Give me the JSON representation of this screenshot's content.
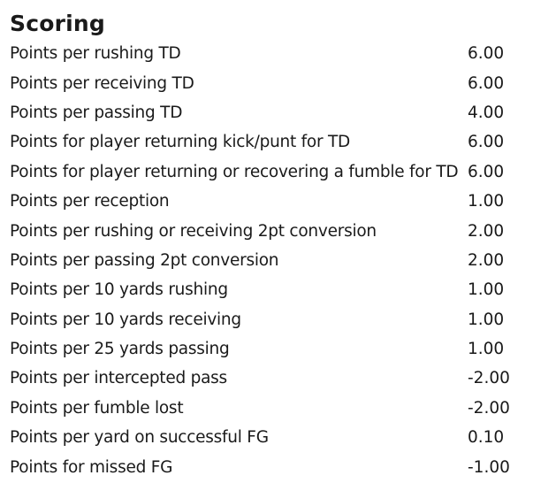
{
  "section": {
    "title": "Scoring"
  },
  "rows": [
    {
      "label": "Points per rushing TD",
      "value": "6.00"
    },
    {
      "label": "Points per receiving TD",
      "value": "6.00"
    },
    {
      "label": "Points per passing TD",
      "value": "4.00"
    },
    {
      "label": "Points for player returning kick/punt for TD",
      "value": "6.00"
    },
    {
      "label": "Points for player returning or recovering a fumble for TD",
      "value": "6.00"
    },
    {
      "label": "Points per reception",
      "value": "1.00"
    },
    {
      "label": "Points per rushing or receiving 2pt conversion",
      "value": "2.00"
    },
    {
      "label": "Points per passing 2pt conversion",
      "value": "2.00"
    },
    {
      "label": "Points per 10 yards rushing",
      "value": "1.00"
    },
    {
      "label": "Points per 10 yards receiving",
      "value": "1.00"
    },
    {
      "label": "Points per 25 yards passing",
      "value": "1.00"
    },
    {
      "label": "Points per intercepted pass",
      "value": "-2.00"
    },
    {
      "label": "Points per fumble lost",
      "value": "-2.00"
    },
    {
      "label": "Points per yard on successful FG",
      "value": "0.10"
    },
    {
      "label": "Points for missed FG",
      "value": "-1.00"
    }
  ]
}
